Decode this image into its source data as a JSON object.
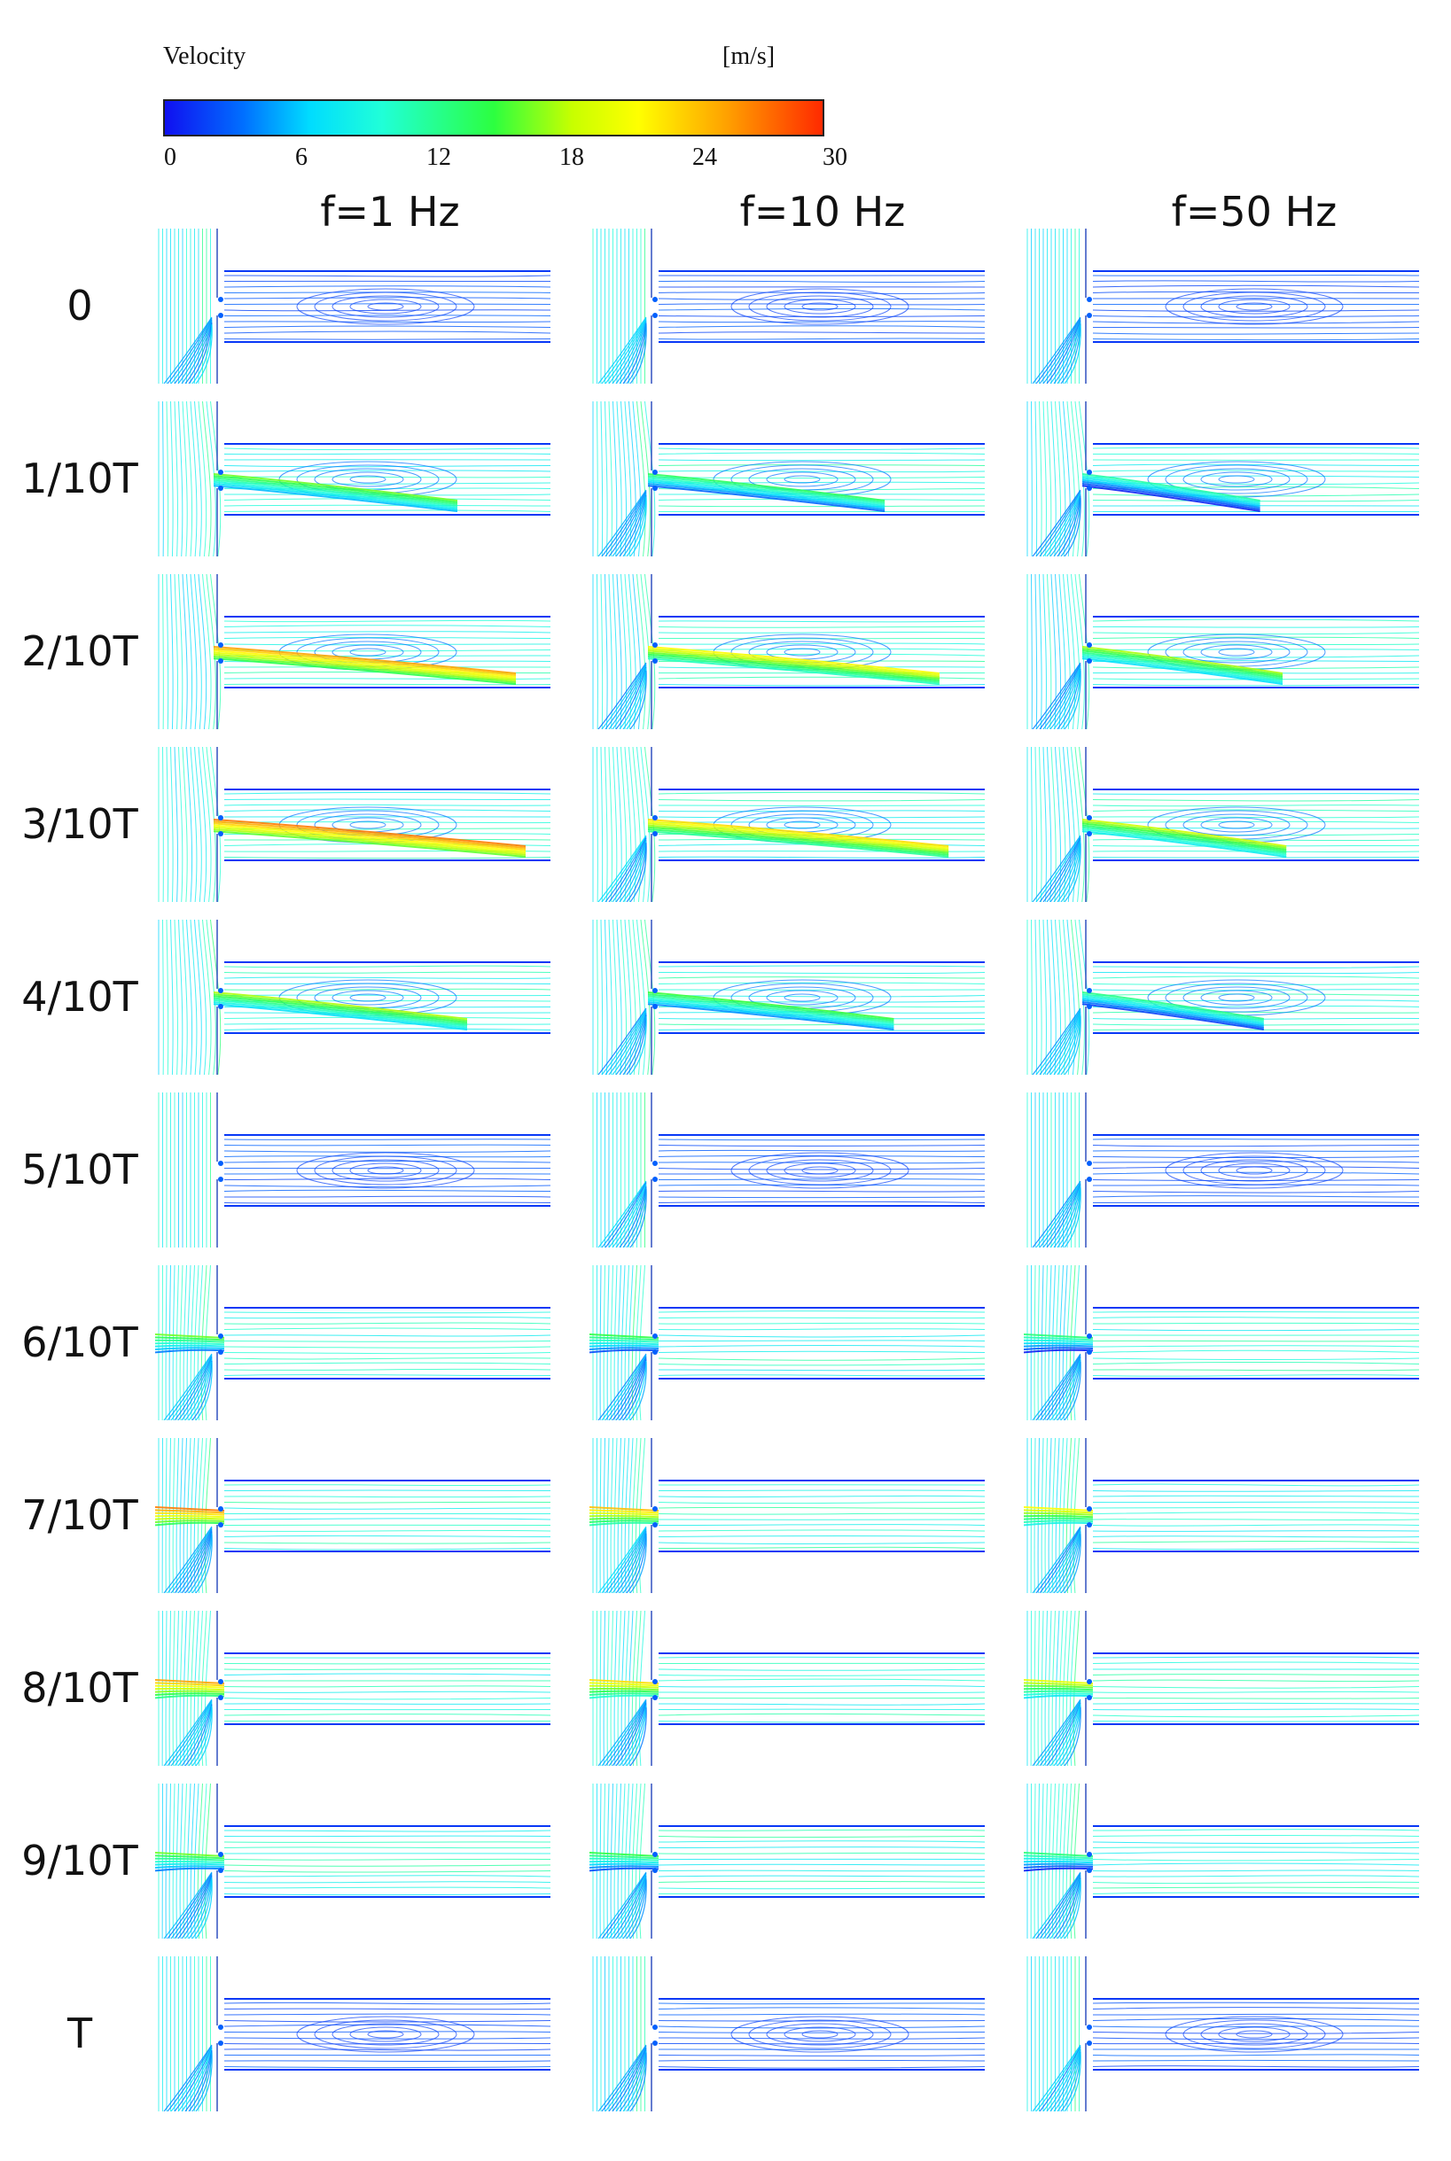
{
  "colorbar": {
    "title": "Velocity",
    "unit": "[m/s]",
    "ticks": [
      "0",
      "6",
      "12",
      "18",
      "24",
      "30"
    ],
    "range": [
      0,
      30
    ],
    "colors": [
      "#1010f0",
      "#00dcff",
      "#2cff40",
      "#ffff00",
      "#ff2a00"
    ]
  },
  "columns": [
    "f=1 Hz",
    "f=10 Hz",
    "f=50 Hz"
  ],
  "rows": [
    "0",
    "1/10T",
    "2/10T",
    "3/10T",
    "4/10T",
    "5/10T",
    "6/10T",
    "7/10T",
    "8/10T",
    "9/10T",
    "T"
  ]
}
